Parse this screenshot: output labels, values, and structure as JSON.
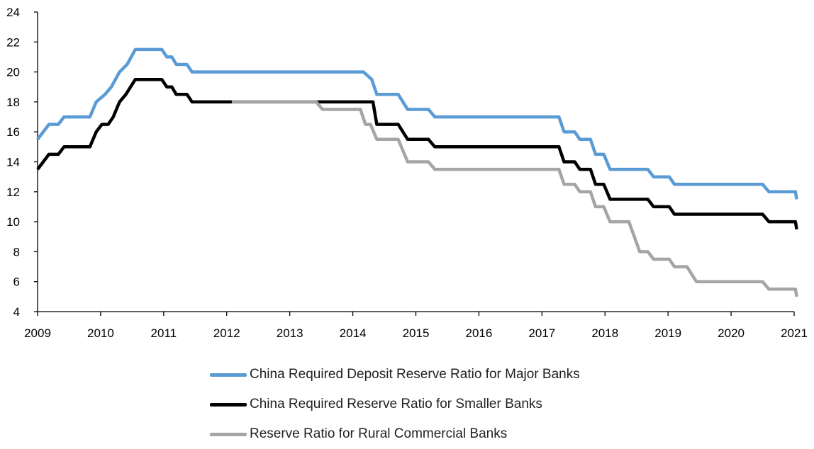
{
  "chart_data": {
    "type": "line",
    "title": "",
    "xlabel": "",
    "ylabel": "",
    "xlim": [
      2009,
      2021.05
    ],
    "ylim": [
      4,
      24
    ],
    "x_ticks": [
      "2009",
      "2010",
      "2011",
      "2012",
      "2013",
      "2014",
      "2015",
      "2016",
      "2017",
      "2018",
      "2019",
      "2020",
      "2021"
    ],
    "y_ticks": [
      "4",
      "6",
      "8",
      "10",
      "12",
      "14",
      "16",
      "18",
      "20",
      "22",
      "24"
    ],
    "grid": false,
    "legend_position": "bottom",
    "series": [
      {
        "name": "China Required Deposit Reserve Ratio for Major Banks",
        "color": "#5b9bd5",
        "points": [
          [
            2009.0,
            15.5
          ],
          [
            2009.18,
            16.5
          ],
          [
            2009.33,
            16.5
          ],
          [
            2009.42,
            17.0
          ],
          [
            2009.83,
            17.0
          ],
          [
            2009.93,
            18.0
          ],
          [
            2010.07,
            18.5
          ],
          [
            2010.17,
            19.0
          ],
          [
            2010.3,
            20.0
          ],
          [
            2010.42,
            20.5
          ],
          [
            2010.55,
            21.5
          ],
          [
            2010.97,
            21.5
          ],
          [
            2011.05,
            21.0
          ],
          [
            2011.13,
            21.0
          ],
          [
            2011.2,
            20.5
          ],
          [
            2011.37,
            20.5
          ],
          [
            2011.45,
            20.0
          ],
          [
            2014.17,
            20.0
          ],
          [
            2014.3,
            19.5
          ],
          [
            2014.38,
            18.5
          ],
          [
            2014.72,
            18.5
          ],
          [
            2014.87,
            17.5
          ],
          [
            2015.2,
            17.5
          ],
          [
            2015.3,
            17.0
          ],
          [
            2017.27,
            17.0
          ],
          [
            2017.35,
            16.0
          ],
          [
            2017.52,
            16.0
          ],
          [
            2017.6,
            15.5
          ],
          [
            2017.77,
            15.5
          ],
          [
            2017.85,
            14.5
          ],
          [
            2017.98,
            14.5
          ],
          [
            2018.08,
            13.5
          ],
          [
            2018.68,
            13.5
          ],
          [
            2018.77,
            13.0
          ],
          [
            2019.02,
            13.0
          ],
          [
            2019.1,
            12.5
          ],
          [
            2020.5,
            12.5
          ],
          [
            2020.6,
            12.0
          ],
          [
            2021.02,
            12.0
          ],
          [
            2021.04,
            11.5
          ]
        ]
      },
      {
        "name": "China Required Reserve Ratio for Smaller Banks",
        "color": "#000000",
        "points": [
          [
            2009.0,
            13.5
          ],
          [
            2009.18,
            14.5
          ],
          [
            2009.33,
            14.5
          ],
          [
            2009.42,
            15.0
          ],
          [
            2009.83,
            15.0
          ],
          [
            2009.93,
            16.0
          ],
          [
            2010.02,
            16.5
          ],
          [
            2010.12,
            16.5
          ],
          [
            2010.2,
            17.0
          ],
          [
            2010.3,
            18.0
          ],
          [
            2010.4,
            18.5
          ],
          [
            2010.55,
            19.5
          ],
          [
            2010.97,
            19.5
          ],
          [
            2011.05,
            19.0
          ],
          [
            2011.13,
            19.0
          ],
          [
            2011.2,
            18.5
          ],
          [
            2011.37,
            18.5
          ],
          [
            2011.45,
            18.0
          ],
          [
            2014.32,
            18.0
          ],
          [
            2014.38,
            16.5
          ],
          [
            2014.72,
            16.5
          ],
          [
            2014.87,
            15.5
          ],
          [
            2015.2,
            15.5
          ],
          [
            2015.3,
            15.0
          ],
          [
            2017.27,
            15.0
          ],
          [
            2017.35,
            14.0
          ],
          [
            2017.52,
            14.0
          ],
          [
            2017.6,
            13.5
          ],
          [
            2017.77,
            13.5
          ],
          [
            2017.85,
            12.5
          ],
          [
            2017.98,
            12.5
          ],
          [
            2018.08,
            11.5
          ],
          [
            2018.68,
            11.5
          ],
          [
            2018.77,
            11.0
          ],
          [
            2019.02,
            11.0
          ],
          [
            2019.1,
            10.5
          ],
          [
            2020.5,
            10.5
          ],
          [
            2020.6,
            10.0
          ],
          [
            2021.02,
            10.0
          ],
          [
            2021.04,
            9.5
          ]
        ]
      },
      {
        "name": "Reserve Ratio for Rural Commercial Banks",
        "color": "#a5a5a5",
        "points": [
          [
            2012.08,
            18.0
          ],
          [
            2013.42,
            18.0
          ],
          [
            2013.52,
            17.5
          ],
          [
            2014.12,
            17.5
          ],
          [
            2014.2,
            16.5
          ],
          [
            2014.28,
            16.5
          ],
          [
            2014.38,
            15.5
          ],
          [
            2014.72,
            15.5
          ],
          [
            2014.87,
            14.0
          ],
          [
            2015.2,
            14.0
          ],
          [
            2015.3,
            13.5
          ],
          [
            2017.27,
            13.5
          ],
          [
            2017.35,
            12.5
          ],
          [
            2017.52,
            12.5
          ],
          [
            2017.6,
            12.0
          ],
          [
            2017.77,
            12.0
          ],
          [
            2017.85,
            11.0
          ],
          [
            2017.98,
            11.0
          ],
          [
            2018.08,
            10.0
          ],
          [
            2018.38,
            10.0
          ],
          [
            2018.55,
            8.0
          ],
          [
            2018.68,
            8.0
          ],
          [
            2018.77,
            7.5
          ],
          [
            2019.02,
            7.5
          ],
          [
            2019.1,
            7.0
          ],
          [
            2019.3,
            7.0
          ],
          [
            2019.45,
            6.0
          ],
          [
            2020.5,
            6.0
          ],
          [
            2020.6,
            5.5
          ],
          [
            2021.02,
            5.5
          ],
          [
            2021.04,
            5.0
          ]
        ]
      }
    ]
  }
}
